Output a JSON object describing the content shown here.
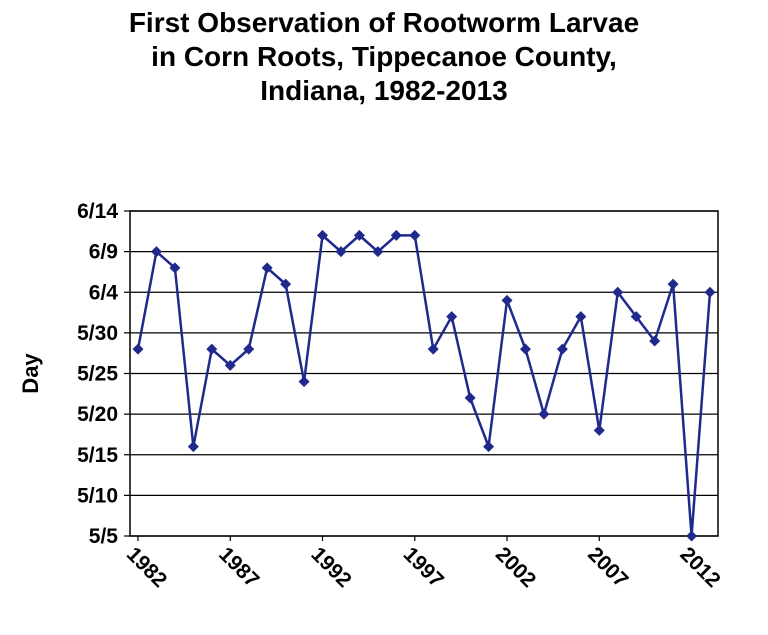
{
  "chart_data": {
    "type": "line",
    "title_lines": [
      "First Observation of Rootworm Larvae",
      "in Corn Roots, Tippecanoe County,",
      "Indiana, 1982-2013"
    ],
    "xlabel": "",
    "ylabel": "Day",
    "y_ticks": [
      "5/5",
      "5/10",
      "5/15",
      "5/20",
      "5/25",
      "5/30",
      "6/4",
      "6/9",
      "6/14"
    ],
    "x_ticks": [
      "1982",
      "1987",
      "1992",
      "1997",
      "2002",
      "2007",
      "2012"
    ],
    "xlim": [
      1982,
      2013
    ],
    "ylim": [
      "5/5",
      "6/14"
    ],
    "grid": "horizontal",
    "series_color": "#1f2a8c",
    "series": [
      {
        "x": [
          1982,
          1983,
          1984,
          1985,
          1986,
          1987,
          1988,
          1989,
          1990,
          1991,
          1992,
          1993,
          1994,
          1995,
          1996,
          1997,
          1998,
          1999,
          2000,
          2001,
          2002,
          2003,
          2004,
          2005,
          2006,
          2007,
          2008,
          2009,
          2010,
          2011,
          2012,
          2013
        ],
        "values": [
          "5/28",
          "6/9",
          "6/7",
          "5/16",
          "5/28",
          "5/26",
          "5/28",
          "6/7",
          "6/5",
          "5/24",
          "6/11",
          "6/9",
          "6/11",
          "6/9",
          "6/11",
          "6/11",
          "5/28",
          "6/1",
          "5/22",
          "5/16",
          "6/3",
          "5/28",
          "5/20",
          "5/28",
          "6/1",
          "5/18",
          "6/4",
          "6/1",
          "5/29",
          "6/5",
          "5/5",
          "6/4"
        ]
      }
    ]
  }
}
